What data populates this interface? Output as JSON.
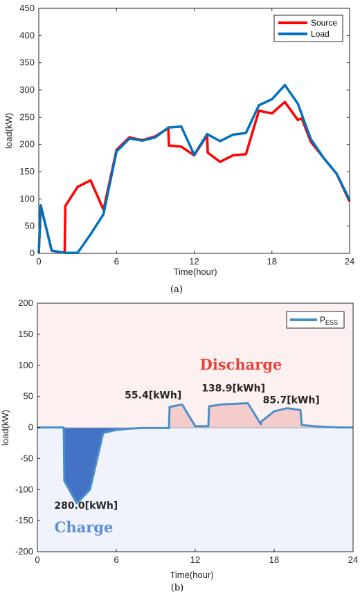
{
  "colors": {
    "source": "#ff0000",
    "load": "#0072bd",
    "pess": "#4a90c8",
    "charge_fill": "#4472c4",
    "discharge_fill": "#f4cccc",
    "discharge_bg": "#fdf0f0",
    "charge_bg": "#f0f3fb",
    "discharge_text": "#e8433b",
    "charge_text": "#5b8fd6"
  },
  "chart_data": [
    {
      "type": "line",
      "caption": "(a)",
      "title": "",
      "xlabel": "Time(hour)",
      "ylabel": "load(kW)",
      "xlim": [
        0,
        24
      ],
      "ylim": [
        0,
        450
      ],
      "xticks": [
        0,
        6,
        12,
        18,
        24
      ],
      "yticks": [
        0,
        50,
        100,
        150,
        200,
        250,
        300,
        350,
        400,
        450
      ],
      "grid": false,
      "legend": "top-right",
      "series": [
        {
          "name": "Source",
          "x": [
            0,
            0.15,
            1,
            2,
            2.05,
            3,
            4,
            5,
            6,
            7,
            8,
            9,
            10,
            10.05,
            11,
            12,
            13,
            13.05,
            14,
            15,
            16,
            17,
            18,
            19,
            20,
            20.3,
            21,
            22,
            23,
            24
          ],
          "y": [
            0,
            88,
            5,
            1,
            87,
            122,
            134,
            80,
            190,
            213,
            208,
            215,
            230,
            198,
            196,
            180,
            217,
            185,
            168,
            180,
            182,
            262,
            257,
            278,
            245,
            248,
            205,
            175,
            146,
            95
          ]
        },
        {
          "name": "Load",
          "x": [
            0,
            0.15,
            1,
            2,
            3,
            4,
            5,
            6,
            7,
            8,
            9,
            10,
            11,
            12,
            13,
            14,
            15,
            16,
            17,
            18,
            19,
            20,
            21,
            22,
            23,
            24
          ],
          "y": [
            0,
            88,
            5,
            1,
            1,
            35,
            72,
            187,
            211,
            207,
            213,
            231,
            233,
            181,
            219,
            206,
            218,
            221,
            272,
            283,
            309,
            275,
            210,
            175,
            146,
            98
          ]
        }
      ]
    },
    {
      "type": "area",
      "caption": "(b)",
      "title": "",
      "xlabel": "Time(hour)",
      "ylabel": "load(kW)",
      "xlim": [
        0,
        24
      ],
      "ylim": [
        -200,
        200
      ],
      "xticks": [
        0,
        6,
        12,
        18,
        24
      ],
      "yticks": [
        200,
        150,
        100,
        50,
        0,
        -50,
        -100,
        -150,
        -200
      ],
      "grid": false,
      "legend": "top-right",
      "regions": {
        "discharge_label": "Discharge",
        "charge_label": "Charge"
      },
      "series": [
        {
          "name": "P",
          "name_sub": "ESS",
          "x": [
            0,
            2,
            2.05,
            3,
            4,
            5,
            6,
            7,
            8,
            9,
            10,
            10.05,
            11,
            12,
            13,
            13.05,
            14,
            15,
            16,
            17,
            17.05,
            18,
            19,
            20,
            20.1,
            21,
            22,
            23,
            24
          ],
          "y": [
            0,
            0,
            -86,
            -122,
            -100,
            -9,
            -4,
            -2,
            -1,
            -1,
            -1,
            33,
            37,
            2,
            2,
            34,
            37,
            38,
            39,
            5,
            10,
            26,
            31,
            28,
            4,
            2,
            1,
            0,
            0
          ]
        }
      ],
      "annotations": [
        {
          "text": "280.0[kWh]",
          "x": 3.7,
          "y": -131
        },
        {
          "text": "55.4[kWh]",
          "x": 8.8,
          "y": 47
        },
        {
          "text": "138.9[kWh]",
          "x": 14.9,
          "y": 58
        },
        {
          "text": "85.7[kWh]",
          "x": 19.3,
          "y": 39
        }
      ]
    }
  ]
}
